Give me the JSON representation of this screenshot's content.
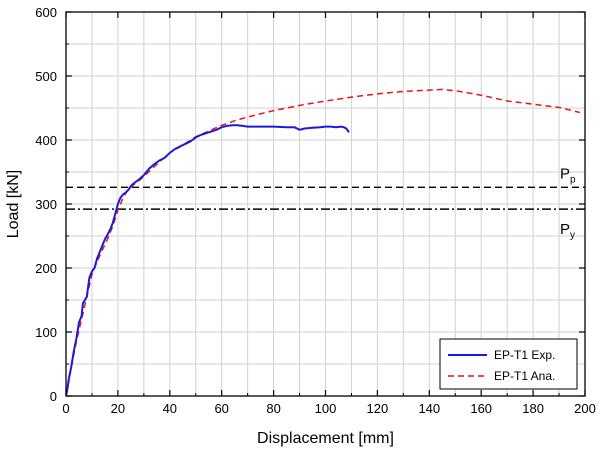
{
  "chart_data": {
    "type": "line",
    "title": "",
    "xlabel": "Displacement [mm]",
    "ylabel": "Load [kN]",
    "xlim": [
      0,
      200
    ],
    "ylim": [
      0,
      600
    ],
    "xticks": [
      0,
      20,
      40,
      60,
      80,
      100,
      120,
      140,
      160,
      180,
      200
    ],
    "yticks": [
      0,
      100,
      200,
      300,
      400,
      500,
      600
    ],
    "grid": true,
    "legend_position": "bottom-right",
    "series": [
      {
        "name": "EP-T1 Exp.",
        "color": "#1a1adb",
        "style": "solid",
        "x": [
          0,
          0.5,
          1,
          1.5,
          2,
          3,
          4,
          5,
          6,
          6.5,
          7,
          8,
          9,
          10,
          11,
          12,
          13,
          14,
          15,
          16,
          17,
          18,
          19,
          20,
          21,
          22,
          23,
          24,
          25,
          26,
          28,
          30,
          32,
          34,
          36,
          38,
          40,
          42,
          44,
          46,
          48,
          50,
          52,
          55,
          58,
          60,
          62,
          64,
          66,
          68,
          70,
          75,
          80,
          85,
          88,
          90,
          92,
          95,
          98,
          100,
          102,
          104,
          106,
          107,
          108,
          109
        ],
        "y": [
          0,
          10,
          25,
          35,
          45,
          70,
          90,
          115,
          125,
          145,
          148,
          155,
          185,
          195,
          200,
          215,
          225,
          235,
          245,
          252,
          260,
          270,
          285,
          300,
          310,
          315,
          318,
          322,
          328,
          332,
          338,
          345,
          355,
          362,
          368,
          372,
          380,
          386,
          390,
          394,
          398,
          404,
          408,
          412,
          416,
          420,
          422,
          423,
          423,
          422,
          421,
          421,
          421,
          420,
          420,
          416,
          418,
          419,
          420,
          421,
          421,
          420,
          421,
          420,
          418,
          412
        ]
      },
      {
        "name": "EP-T1 Ana.",
        "color": "#e8141b",
        "style": "dashed",
        "x": [
          0,
          1,
          2,
          4,
          6,
          8,
          10,
          12,
          14,
          16,
          18,
          20,
          22,
          24,
          26,
          28,
          30,
          35,
          40,
          45,
          50,
          55,
          60,
          65,
          70,
          80,
          90,
          100,
          110,
          120,
          130,
          140,
          145,
          150,
          160,
          170,
          180,
          190,
          198
        ],
        "y": [
          0,
          20,
          45,
          85,
          120,
          155,
          190,
          210,
          228,
          245,
          265,
          290,
          310,
          323,
          330,
          336,
          343,
          362,
          380,
          392,
          405,
          414,
          423,
          430,
          436,
          446,
          454,
          461,
          467,
          472,
          476,
          478,
          479,
          477,
          470,
          461,
          456,
          451,
          443
        ]
      }
    ],
    "reference_lines": [
      {
        "label": "P",
        "subscript": "p",
        "value": 326,
        "style": "dashed"
      },
      {
        "label": "P",
        "subscript": "y",
        "value": 292,
        "style": "dash-dot"
      }
    ]
  }
}
